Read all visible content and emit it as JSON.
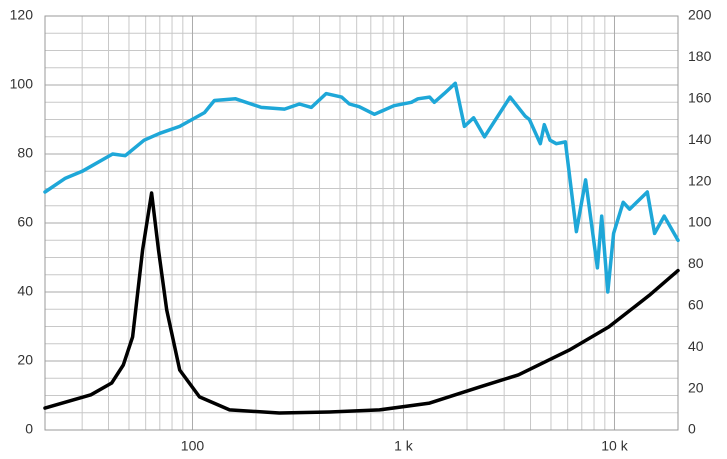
{
  "chart_data": {
    "type": "line",
    "xscale": "log",
    "grid": true,
    "xlim": [
      20,
      20000
    ],
    "xticks": [
      100,
      {
        "value": 1000,
        "label": "1 k"
      },
      {
        "value": 10000,
        "label": "10 k"
      }
    ],
    "ylim": [
      0,
      120
    ],
    "yticks": [
      0,
      20,
      40,
      60,
      80,
      100,
      120
    ],
    "y2lim": [
      0,
      200
    ],
    "y2ticks": [
      0,
      20,
      40,
      60,
      80,
      100,
      120,
      140,
      160,
      180,
      200
    ],
    "series": [
      {
        "color": "#1ea7d8",
        "axis": "y",
        "x": [
          20,
          25,
          30,
          41.8,
          48,
          59,
          70,
          87,
          114,
          127,
          160,
          212,
          273,
          321,
          366,
          430,
          509,
          554,
          617,
          728,
          902,
          1090,
          1170,
          1330,
          1400,
          1560,
          1760,
          1945,
          2150,
          2420,
          3200,
          3770,
          3950,
          4450,
          4650,
          4950,
          5300,
          5850,
          6600,
          7300,
          8300,
          8700,
          9300,
          9900,
          11000,
          11800,
          14300,
          15500,
          17200,
          20000
        ],
        "values": [
          69,
          73,
          75,
          80,
          79.5,
          84,
          86,
          88,
          92,
          95.5,
          96,
          93.5,
          93,
          94.5,
          93.5,
          97.5,
          96.5,
          94.5,
          93.7,
          91.5,
          94,
          95,
          96,
          96.5,
          95,
          97.5,
          100.5,
          88,
          90.5,
          85,
          96.5,
          91,
          90,
          83,
          88.5,
          84,
          83,
          83.5,
          57.5,
          72.5,
          47,
          62,
          40,
          57,
          66,
          64,
          69,
          57,
          62,
          55
        ]
      },
      {
        "color": "#000000",
        "axis": "y2",
        "x": [
          20,
          33,
          41.4,
          47,
          52,
          58,
          64,
          69,
          75.5,
          87,
          108,
          150,
          258,
          446,
          770,
          1330,
          2300,
          3500,
          6100,
          9400,
          14600,
          20000
        ],
        "values": [
          10.6,
          17,
          22.7,
          31.4,
          45,
          87,
          114.5,
          87,
          58,
          29,
          16,
          9.7,
          8.2,
          8.7,
          9.7,
          13,
          20.8,
          26.6,
          38.6,
          49.8,
          65,
          77
        ]
      }
    ]
  }
}
